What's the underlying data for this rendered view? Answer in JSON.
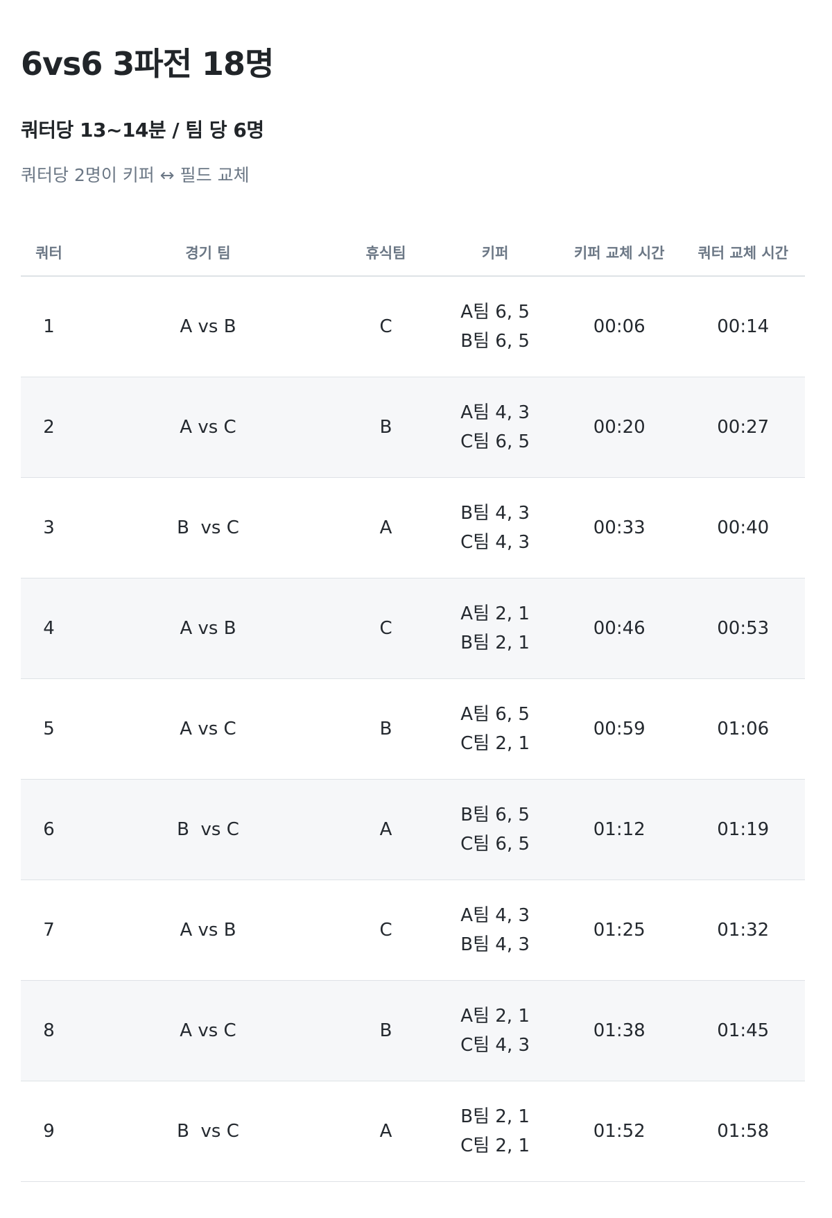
{
  "title": "6vs6 3파전 18명",
  "subtitle": "쿼터당 13~14분 / 팀 당 6명",
  "note": "쿼터당 2명이 키퍼 ↔ 필드 교체",
  "table": {
    "headers": [
      "쿼터",
      "경기 팀",
      "휴식팀",
      "키퍼",
      "키퍼 교체 시간",
      "쿼터 교체 시간"
    ],
    "rows": [
      {
        "quarter": "1",
        "match": "A vs B",
        "rest": "C",
        "keeper1": "A팀 6, 5",
        "keeper2": "B팀 6, 5",
        "keeper_swap": "00:06",
        "quarter_swap": "00:14"
      },
      {
        "quarter": "2",
        "match": "A vs C",
        "rest": "B",
        "keeper1": "A팀 4, 3",
        "keeper2": "C팀 6, 5",
        "keeper_swap": "00:20",
        "quarter_swap": "00:27"
      },
      {
        "quarter": "3",
        "match": "B  vs C",
        "rest": "A",
        "keeper1": "B팀 4, 3",
        "keeper2": "C팀 4, 3",
        "keeper_swap": "00:33",
        "quarter_swap": "00:40"
      },
      {
        "quarter": "4",
        "match": "A vs B",
        "rest": "C",
        "keeper1": "A팀 2, 1",
        "keeper2": "B팀 2, 1",
        "keeper_swap": "00:46",
        "quarter_swap": "00:53"
      },
      {
        "quarter": "5",
        "match": "A vs C",
        "rest": "B",
        "keeper1": "A팀 6, 5",
        "keeper2": "C팀 2, 1",
        "keeper_swap": "00:59",
        "quarter_swap": "01:06"
      },
      {
        "quarter": "6",
        "match": "B  vs C",
        "rest": "A",
        "keeper1": "B팀 6, 5",
        "keeper2": "C팀 6, 5",
        "keeper_swap": "01:12",
        "quarter_swap": "01:19"
      },
      {
        "quarter": "7",
        "match": "A vs B",
        "rest": "C",
        "keeper1": "A팀 4, 3",
        "keeper2": "B팀 4, 3",
        "keeper_swap": "01:25",
        "quarter_swap": "01:32"
      },
      {
        "quarter": "8",
        "match": "A vs C",
        "rest": "B",
        "keeper1": "A팀 2, 1",
        "keeper2": "C팀 4, 3",
        "keeper_swap": "01:38",
        "quarter_swap": "01:45"
      },
      {
        "quarter": "9",
        "match": "B  vs C",
        "rest": "A",
        "keeper1": "B팀 2, 1",
        "keeper2": "C팀 2, 1",
        "keeper_swap": "01:52",
        "quarter_swap": "01:58"
      }
    ]
  }
}
